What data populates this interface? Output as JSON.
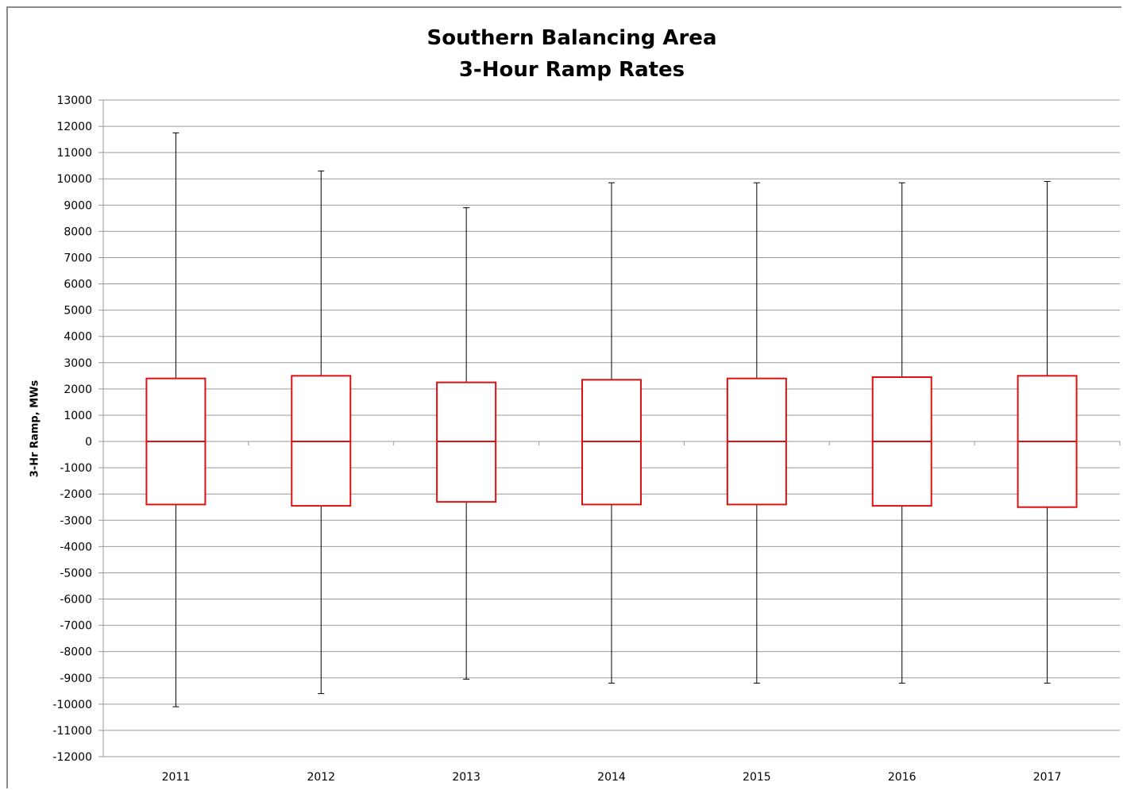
{
  "chart_data": {
    "type": "boxplot",
    "title_lines": [
      "Southern Balancing Area",
      "3-Hour Ramp Rates"
    ],
    "xlabel": "",
    "ylabel": "3-Hr Ramp, MWs",
    "ylim": [
      -12000,
      13000
    ],
    "ytick_step": 1000,
    "grid": "horizontal",
    "legend": "none",
    "categories": [
      "2011",
      "2012",
      "2013",
      "2014",
      "2015",
      "2016",
      "2017"
    ],
    "boxes": [
      {
        "category": "2011",
        "min": -10100,
        "q1": -2400,
        "median": 0,
        "q3": 2400,
        "max": 11750
      },
      {
        "category": "2012",
        "min": -9600,
        "q1": -2450,
        "median": 0,
        "q3": 2500,
        "max": 10300
      },
      {
        "category": "2013",
        "min": -9050,
        "q1": -2300,
        "median": 0,
        "q3": 2250,
        "max": 8900
      },
      {
        "category": "2014",
        "min": -9200,
        "q1": -2400,
        "median": 0,
        "q3": 2350,
        "max": 9850
      },
      {
        "category": "2015",
        "min": -9200,
        "q1": -2400,
        "median": 0,
        "q3": 2400,
        "max": 9850
      },
      {
        "category": "2016",
        "min": -9200,
        "q1": -2450,
        "median": 0,
        "q3": 2450,
        "max": 9850
      },
      {
        "category": "2017",
        "min": -9200,
        "q1": -2500,
        "median": 0,
        "q3": 2500,
        "max": 9900
      }
    ],
    "colors": {
      "box": "#dd1111",
      "whisker": "#000000",
      "grid": "#9a9a9a"
    }
  }
}
